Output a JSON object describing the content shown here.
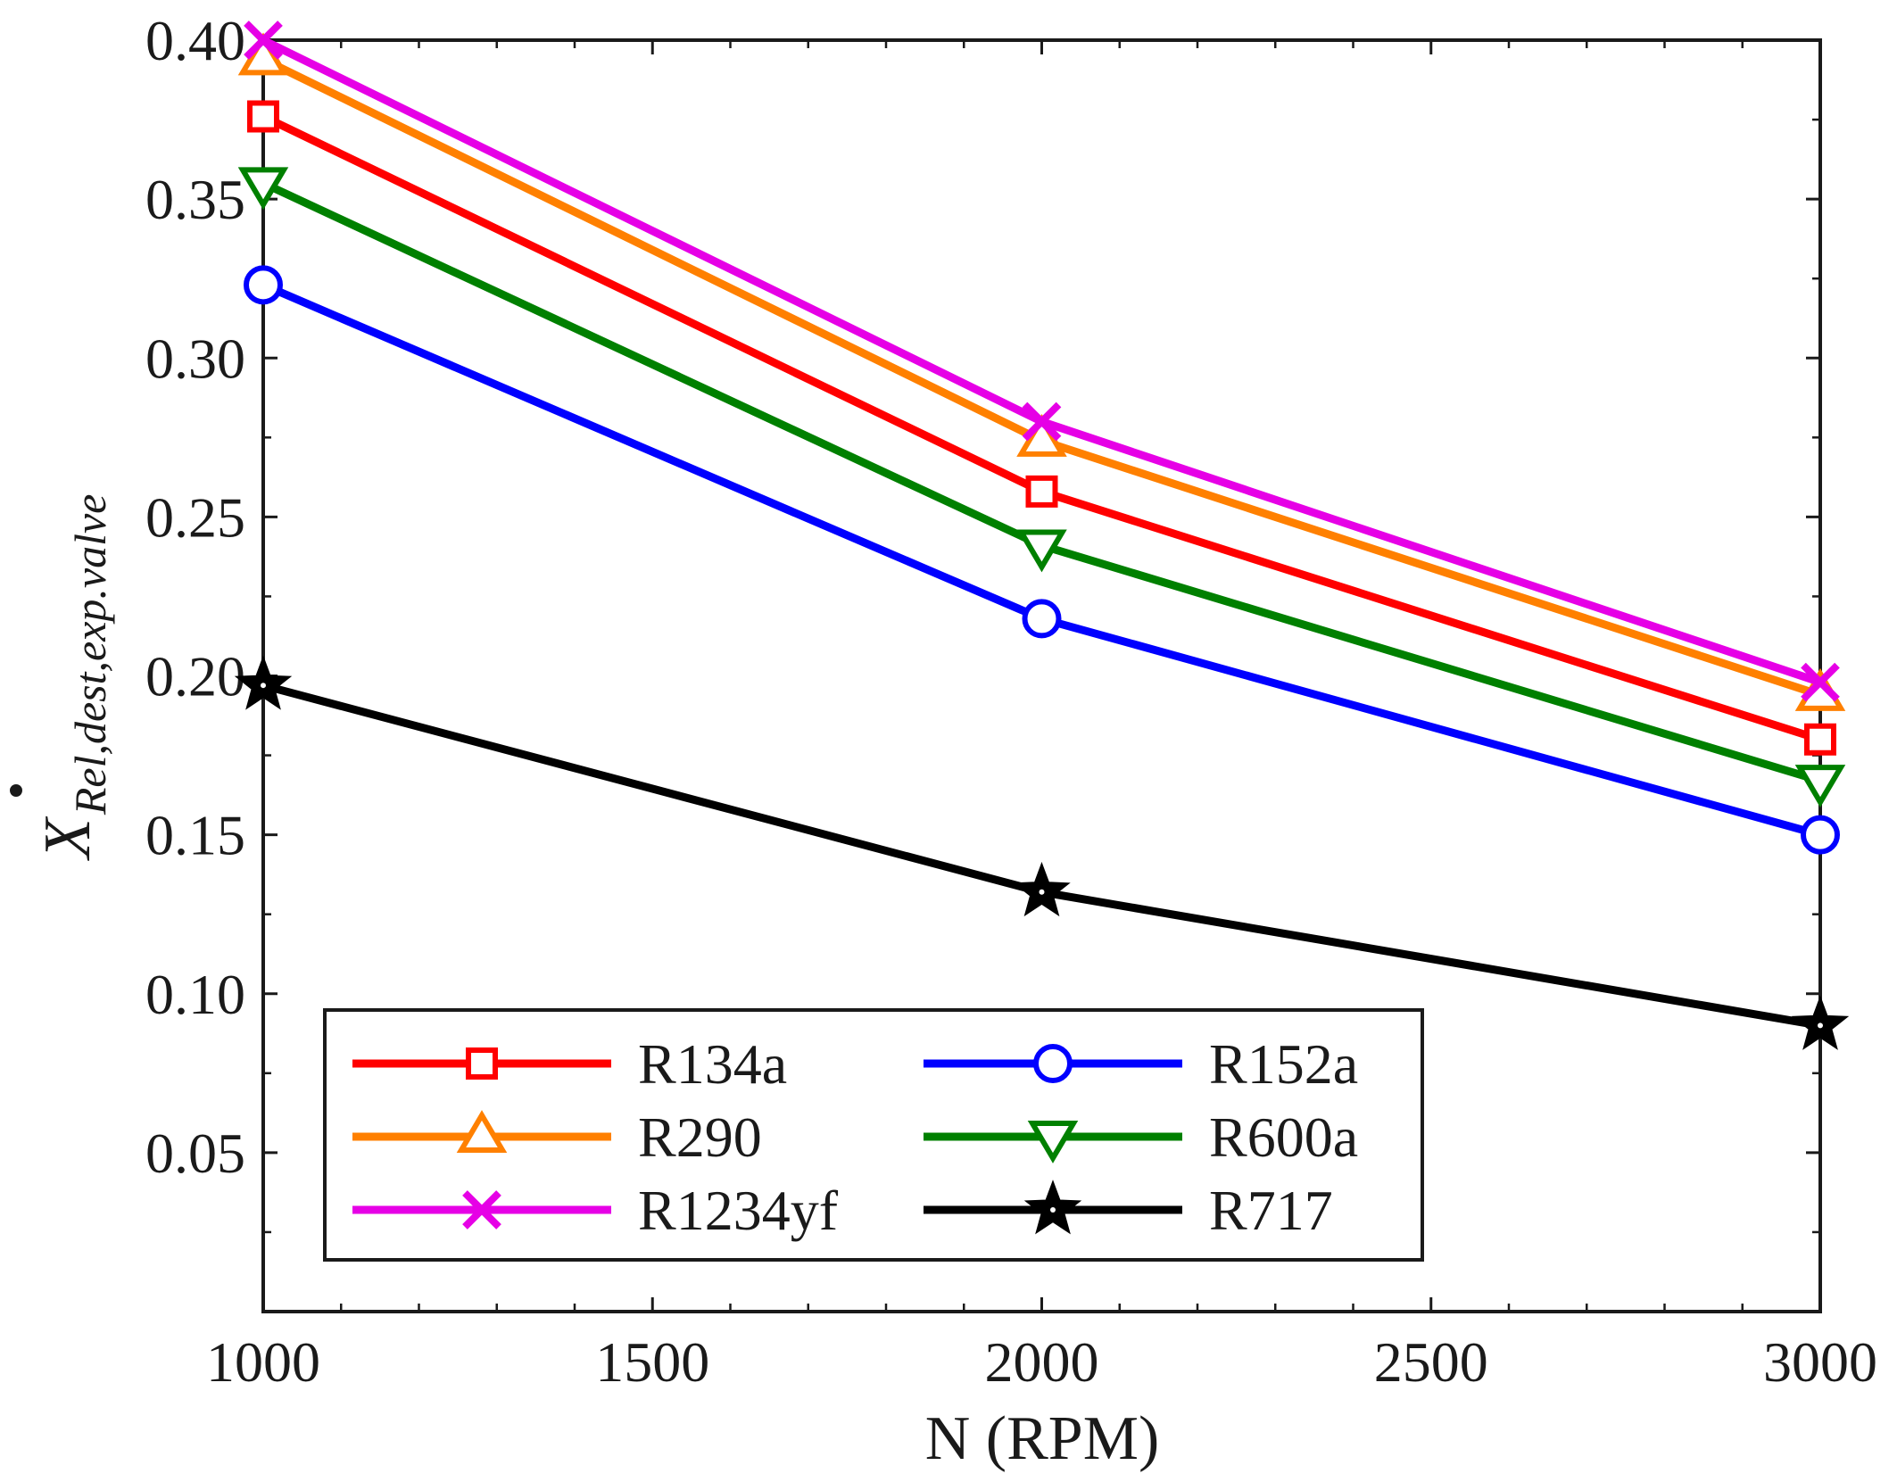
{
  "chart_data": {
    "type": "line",
    "title": "",
    "xlabel": "N (RPM)",
    "ylabel": {
      "base": "X",
      "subscript": "Rel,dest,exp.valve"
    },
    "x": [
      1000,
      2000,
      3000
    ],
    "xlim": [
      1000,
      3000
    ],
    "ylim": [
      0.0,
      0.4
    ],
    "xticks": [
      1000,
      1500,
      2000,
      2500,
      3000
    ],
    "xtick_labels": [
      "1000",
      "1500",
      "2000",
      "2500",
      "3000"
    ],
    "yticks": [
      0.05,
      0.1,
      0.15,
      0.2,
      0.25,
      0.3,
      0.35,
      0.4
    ],
    "ytick_labels": [
      "0.05",
      "0.10",
      "0.15",
      "0.20",
      "0.25",
      "0.30",
      "0.35",
      "0.40"
    ],
    "grid": false,
    "legend_position": "bottom-left",
    "legend_columns": 2,
    "series": [
      {
        "name": "R134a",
        "color": "#ff0000",
        "marker": "square",
        "values": [
          0.376,
          0.258,
          0.18
        ]
      },
      {
        "name": "R290",
        "color": "#ff8000",
        "marker": "triangle-up",
        "values": [
          0.394,
          0.274,
          0.194
        ]
      },
      {
        "name": "R1234yf",
        "color": "#e600e6",
        "marker": "x",
        "values": [
          0.4,
          0.28,
          0.198
        ]
      },
      {
        "name": "R152a",
        "color": "#0000ff",
        "marker": "circle",
        "values": [
          0.323,
          0.218,
          0.15
        ]
      },
      {
        "name": "R600a",
        "color": "#008000",
        "marker": "triangle-down",
        "values": [
          0.355,
          0.241,
          0.167
        ]
      },
      {
        "name": "R717",
        "color": "#000000",
        "marker": "star",
        "values": [
          0.197,
          0.132,
          0.09
        ]
      }
    ]
  }
}
